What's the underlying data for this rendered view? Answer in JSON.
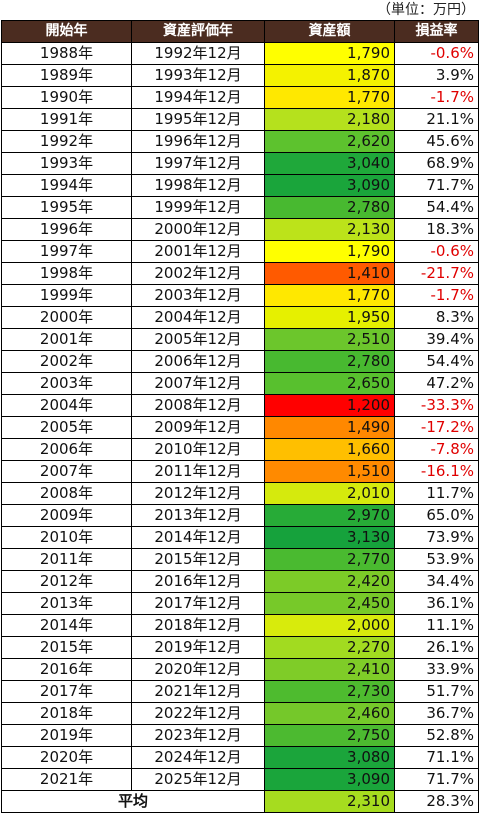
{
  "unit_note": "（単位：万円）",
  "headers": [
    "開始年",
    "資産評価年",
    "資産額",
    "損益率"
  ],
  "rows": [
    {
      "start": "1988年",
      "eval": "1992年12月",
      "asset": "1,790",
      "rate": "-0.6%",
      "color": "#ffff00"
    },
    {
      "start": "1989年",
      "eval": "1993年12月",
      "asset": "1,870",
      "rate": "3.9%",
      "color": "#f4f200"
    },
    {
      "start": "1990年",
      "eval": "1994年12月",
      "asset": "1,770",
      "rate": "-1.7%",
      "color": "#ffe800"
    },
    {
      "start": "1991年",
      "eval": "1995年12月",
      "asset": "2,180",
      "rate": "21.1%",
      "color": "#b5e11d"
    },
    {
      "start": "1992年",
      "eval": "1996年12月",
      "asset": "2,620",
      "rate": "45.6%",
      "color": "#5dc22e"
    },
    {
      "start": "1993年",
      "eval": "1997年12月",
      "asset": "3,040",
      "rate": "68.9%",
      "color": "#1fa83a"
    },
    {
      "start": "1994年",
      "eval": "1998年12月",
      "asset": "3,090",
      "rate": "71.7%",
      "color": "#1aa53b"
    },
    {
      "start": "1995年",
      "eval": "1999年12月",
      "asset": "2,780",
      "rate": "54.4%",
      "color": "#48b930"
    },
    {
      "start": "1996年",
      "eval": "2000年12月",
      "asset": "2,130",
      "rate": "18.3%",
      "color": "#bce31a"
    },
    {
      "start": "1997年",
      "eval": "2001年12月",
      "asset": "1,790",
      "rate": "-0.6%",
      "color": "#ffff00"
    },
    {
      "start": "1998年",
      "eval": "2002年12月",
      "asset": "1,410",
      "rate": "-21.7%",
      "color": "#ff5a00"
    },
    {
      "start": "1999年",
      "eval": "2003年12月",
      "asset": "1,770",
      "rate": "-1.7%",
      "color": "#ffe800"
    },
    {
      "start": "2000年",
      "eval": "2004年12月",
      "asset": "1,950",
      "rate": "8.3%",
      "color": "#e6f000"
    },
    {
      "start": "2001年",
      "eval": "2005年12月",
      "asset": "2,510",
      "rate": "39.4%",
      "color": "#6cc62c"
    },
    {
      "start": "2002年",
      "eval": "2006年12月",
      "asset": "2,780",
      "rate": "54.4%",
      "color": "#48b930"
    },
    {
      "start": "2003年",
      "eval": "2007年12月",
      "asset": "2,650",
      "rate": "47.2%",
      "color": "#58c02e"
    },
    {
      "start": "2004年",
      "eval": "2008年12月",
      "asset": "1,200",
      "rate": "-33.3%",
      "color": "#ff0000"
    },
    {
      "start": "2005年",
      "eval": "2009年12月",
      "asset": "1,490",
      "rate": "-17.2%",
      "color": "#ff8800"
    },
    {
      "start": "2006年",
      "eval": "2010年12月",
      "asset": "1,660",
      "rate": "-7.8%",
      "color": "#ffbf00"
    },
    {
      "start": "2007年",
      "eval": "2011年12月",
      "asset": "1,510",
      "rate": "-16.1%",
      "color": "#ff8a00"
    },
    {
      "start": "2008年",
      "eval": "2012年12月",
      "asset": "2,010",
      "rate": "11.7%",
      "color": "#d5ea0d"
    },
    {
      "start": "2009年",
      "eval": "2013年12月",
      "asset": "2,970",
      "rate": "65.0%",
      "color": "#27ab37"
    },
    {
      "start": "2010年",
      "eval": "2014年12月",
      "asset": "3,130",
      "rate": "73.9%",
      "color": "#16a23c"
    },
    {
      "start": "2011年",
      "eval": "2015年12月",
      "asset": "2,770",
      "rate": "53.9%",
      "color": "#4aba30"
    },
    {
      "start": "2012年",
      "eval": "2016年12月",
      "asset": "2,420",
      "rate": "34.4%",
      "color": "#7ccb28"
    },
    {
      "start": "2013年",
      "eval": "2017年12月",
      "asset": "2,450",
      "rate": "36.1%",
      "color": "#77c929"
    },
    {
      "start": "2014年",
      "eval": "2018年12月",
      "asset": "2,000",
      "rate": "11.1%",
      "color": "#d8eb0c"
    },
    {
      "start": "2015年",
      "eval": "2019年12月",
      "asset": "2,270",
      "rate": "26.1%",
      "color": "#a2db20"
    },
    {
      "start": "2016年",
      "eval": "2020年12月",
      "asset": "2,410",
      "rate": "33.9%",
      "color": "#7fcc28"
    },
    {
      "start": "2017年",
      "eval": "2021年12月",
      "asset": "2,730",
      "rate": "51.7%",
      "color": "#4ebb2f"
    },
    {
      "start": "2018年",
      "eval": "2022年12月",
      "asset": "2,460",
      "rate": "36.7%",
      "color": "#75c82a"
    },
    {
      "start": "2019年",
      "eval": "2023年12月",
      "asset": "2,750",
      "rate": "52.8%",
      "color": "#4cba30"
    },
    {
      "start": "2020年",
      "eval": "2024年12月",
      "asset": "3,080",
      "rate": "71.1%",
      "color": "#1ba53b"
    },
    {
      "start": "2021年",
      "eval": "2025年12月",
      "asset": "3,090",
      "rate": "71.7%",
      "color": "#1aa53b"
    }
  ],
  "average": {
    "label": "平均",
    "asset": "2,310",
    "rate": "28.3%",
    "color": "#a6dc1f"
  },
  "negative_color": "#e00000",
  "header_bg": "#4b2c20"
}
